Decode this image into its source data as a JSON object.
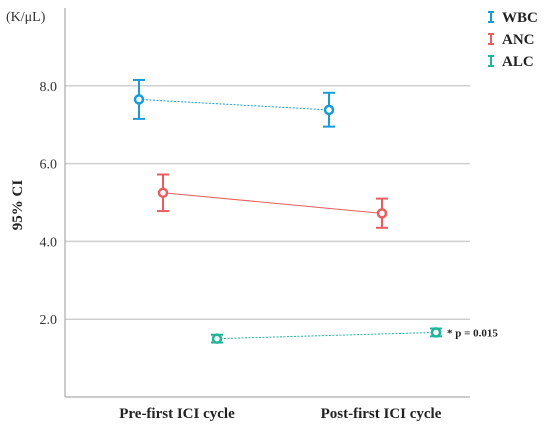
{
  "chart_data": {
    "type": "line",
    "unit_label": "(K/μL)",
    "ylabel": "95% CI",
    "categories": [
      "Pre-first ICI cycle",
      "Post-first ICI cycle"
    ],
    "ylim": [
      0,
      10
    ],
    "yticks": [
      "2.0",
      "4.0",
      "6.0",
      "8.0"
    ],
    "legend_position": "top-right",
    "grid": true,
    "series": [
      {
        "name": "WBC",
        "color": "#1a9ad6",
        "values": [
          7.65,
          7.38
        ],
        "lower": [
          7.15,
          6.95
        ],
        "upper": [
          8.15,
          7.82
        ]
      },
      {
        "name": "ANC",
        "color": "#e85e5e",
        "values": [
          5.25,
          4.72
        ],
        "lower": [
          4.78,
          4.35
        ],
        "upper": [
          5.72,
          5.1
        ]
      },
      {
        "name": "ALC",
        "color": "#1fb59a",
        "values": [
          1.5,
          1.66
        ],
        "lower": [
          1.4,
          1.56
        ],
        "upper": [
          1.6,
          1.76
        ]
      }
    ],
    "annotation": "* p = 0.015"
  }
}
